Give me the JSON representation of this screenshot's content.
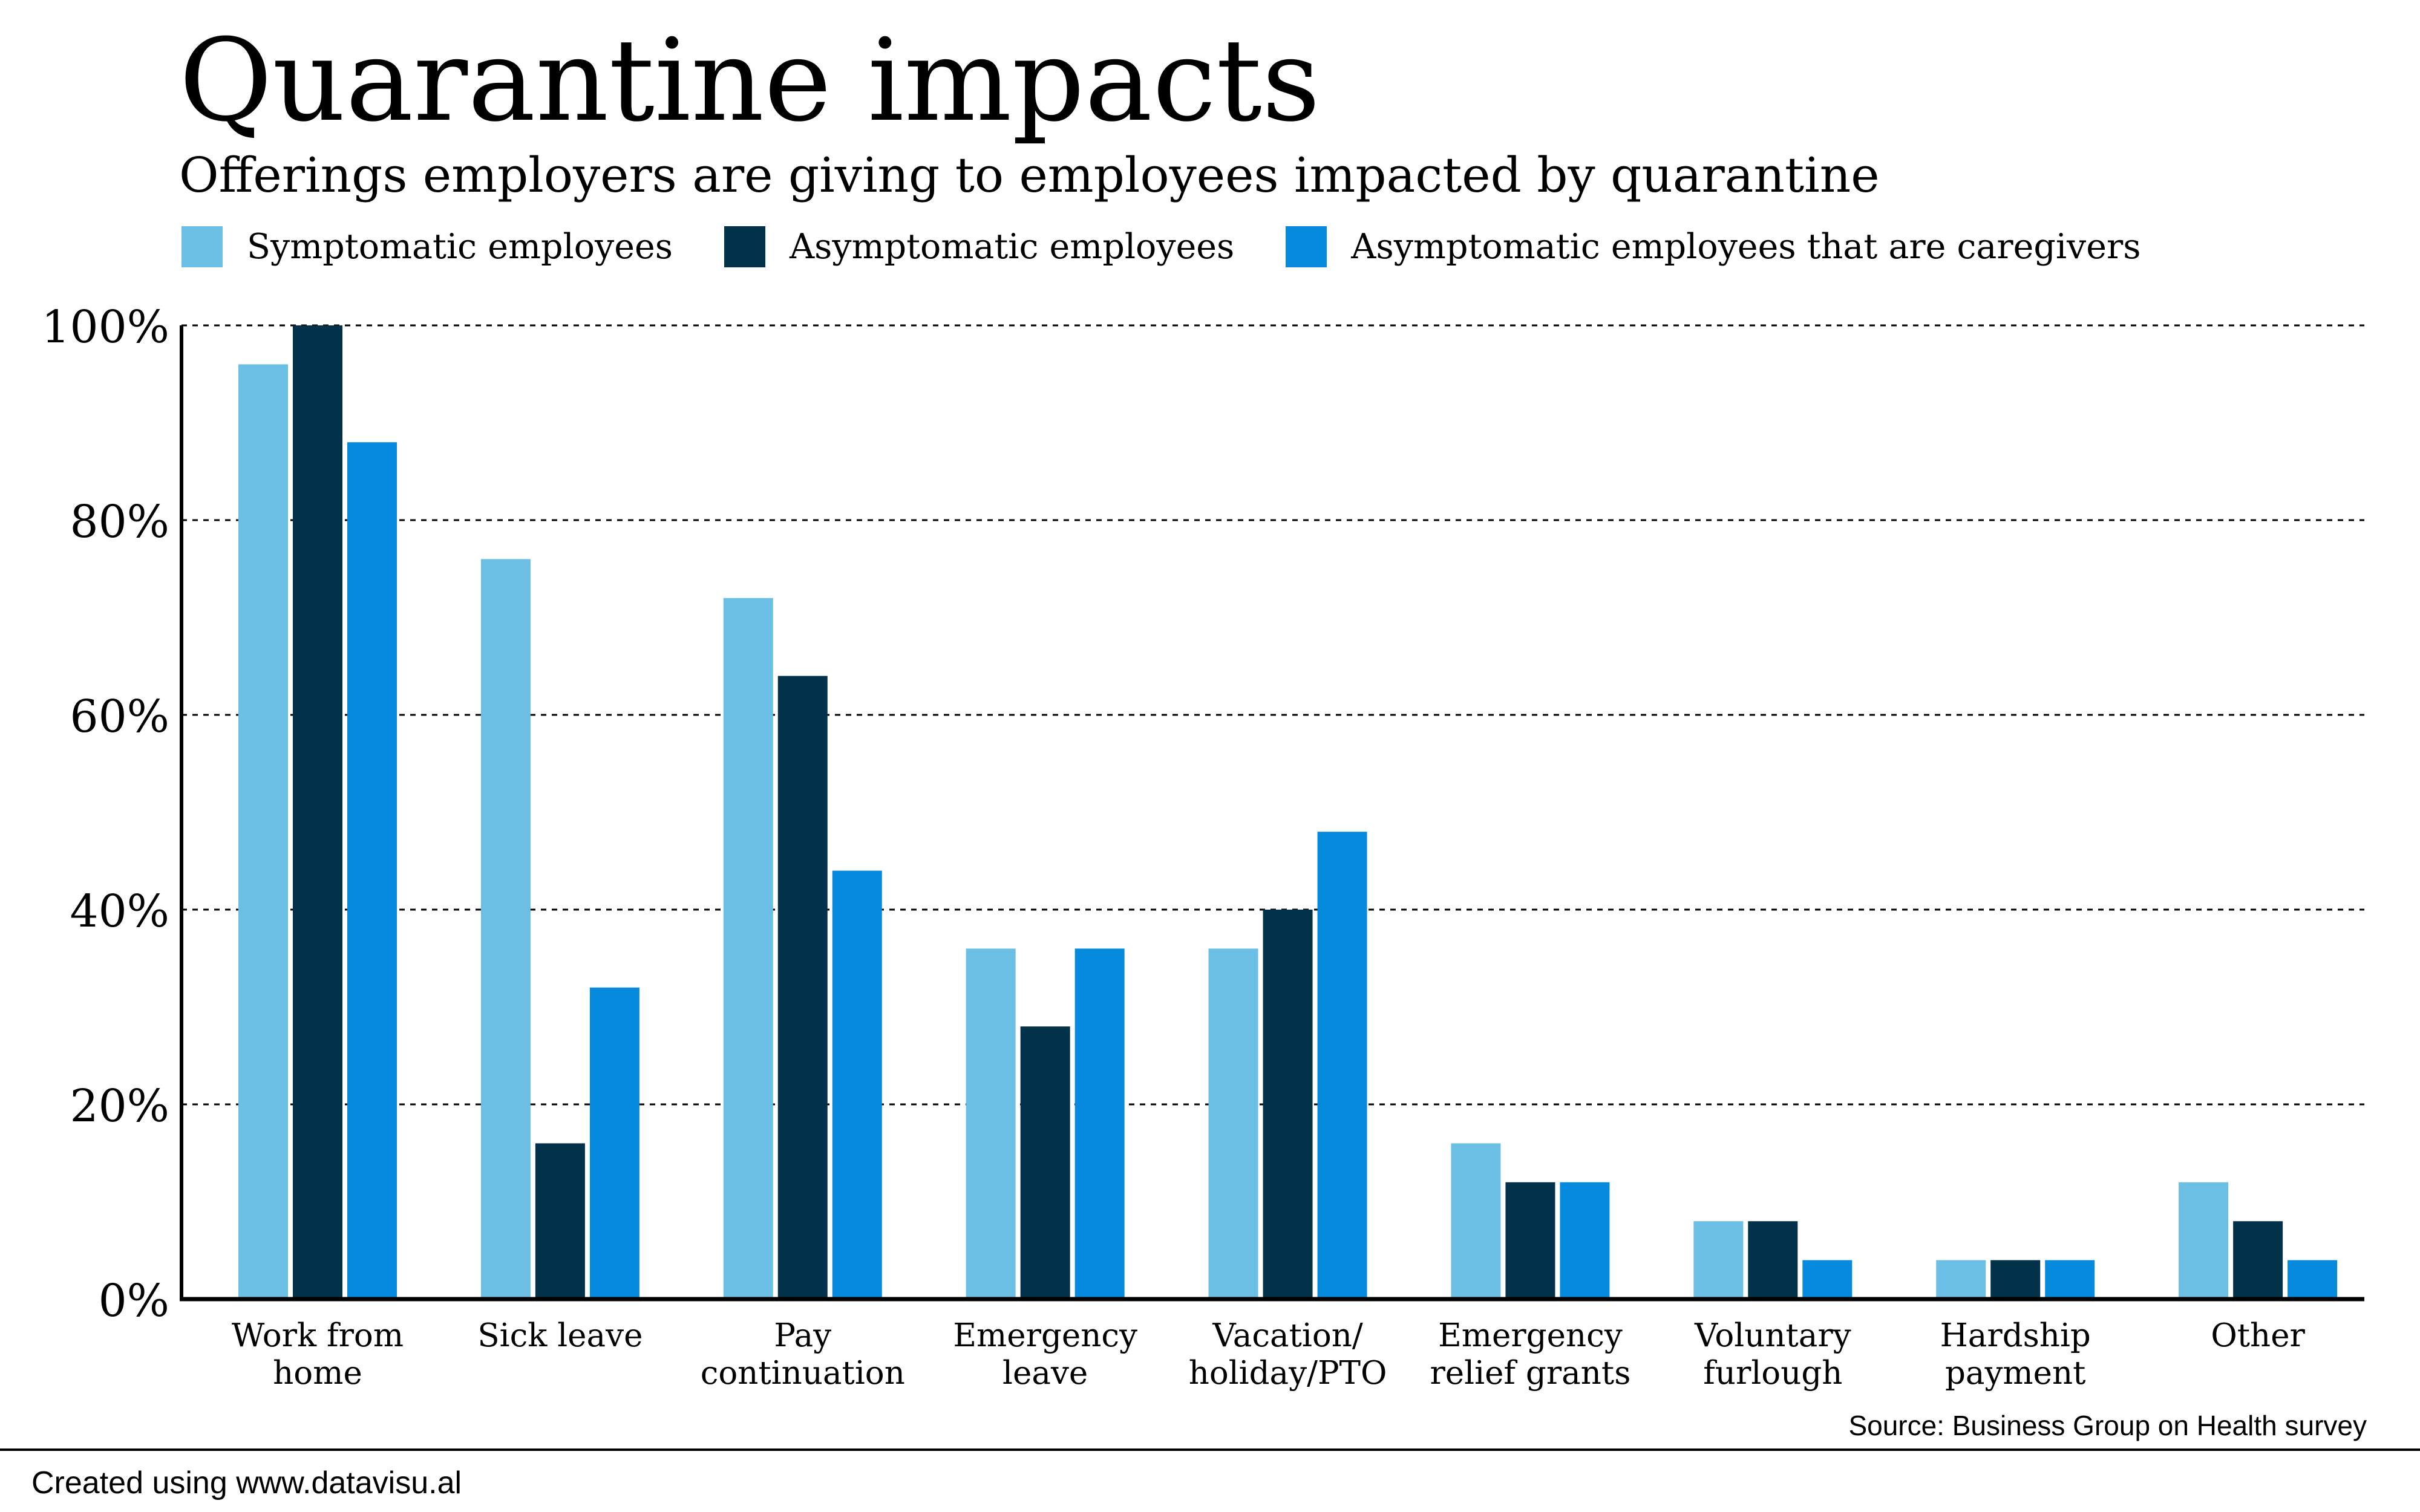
{
  "title": "Quarantine impacts",
  "subtitle": "Offerings employers are giving to employees impacted by quarantine",
  "source": "Source: Business Group on Health survey",
  "credit": "Created using www.datavisu.al",
  "chart_data": {
    "type": "bar",
    "title": "Quarantine impacts",
    "subtitle": "Offerings employers are giving to employees impacted by quarantine",
    "categories": [
      [
        "Work from",
        "home"
      ],
      [
        "Sick leave"
      ],
      [
        "Pay",
        "continuation"
      ],
      [
        "Emergency",
        "leave"
      ],
      [
        "Vacation/",
        "holiday/PTO"
      ],
      [
        "Emergency",
        "relief grants"
      ],
      [
        "Voluntary",
        "furlough"
      ],
      [
        "Hardship",
        "payment"
      ],
      [
        "Other"
      ]
    ],
    "series": [
      {
        "name": "Symptomatic employees",
        "color": "#6bbfe5",
        "values": [
          96,
          76,
          72,
          36,
          36,
          16,
          8,
          4,
          12
        ]
      },
      {
        "name": "Asymptomatic employees",
        "color": "#02324a",
        "values": [
          100,
          16,
          64,
          28,
          40,
          12,
          8,
          4,
          8
        ]
      },
      {
        "name": "Asymptomatic employees that are caregivers",
        "color": "#068ade",
        "values": [
          88,
          32,
          44,
          36,
          48,
          12,
          4,
          4,
          4
        ]
      }
    ],
    "ylim": [
      0,
      100
    ],
    "yticks": [
      0,
      20,
      40,
      60,
      80,
      100
    ],
    "ytick_labels": [
      "0%",
      "20%",
      "40%",
      "60%",
      "80%",
      "100%"
    ],
    "grid": true,
    "grid_style": "dotted",
    "legend_position": "top-left"
  }
}
